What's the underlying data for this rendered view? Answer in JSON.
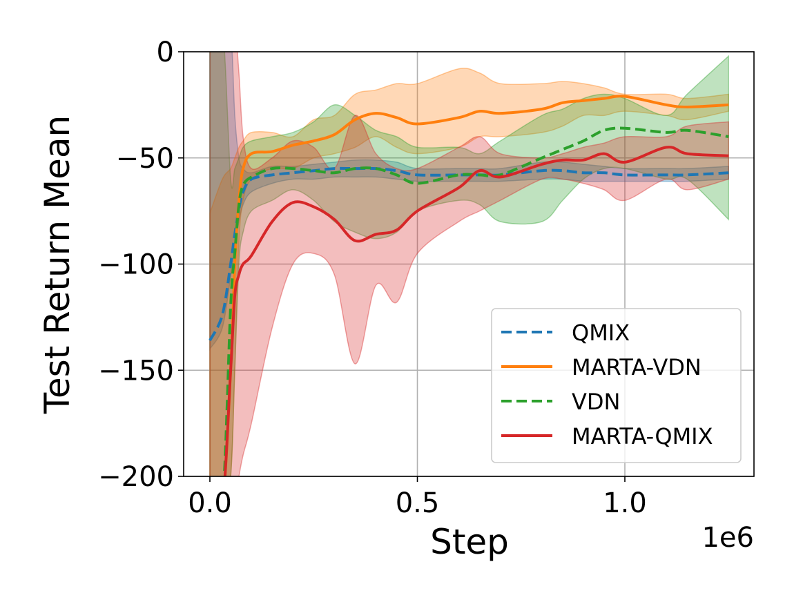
{
  "chart_data": {
    "type": "line",
    "title": "",
    "xlabel": "Step",
    "ylabel": "Test Return Mean",
    "x_offset_label": "1e6",
    "xlim": [
      -0.06,
      1.31
    ],
    "ylim": [
      -200,
      0
    ],
    "xticks": [
      0.0,
      0.5,
      1.0
    ],
    "xtick_labels": [
      "0.0",
      "0.5",
      "1.0"
    ],
    "yticks": [
      0,
      -50,
      -100,
      -150,
      -200
    ],
    "ytick_labels": [
      "0",
      "−50",
      "−100",
      "−150",
      "−200"
    ],
    "grid": true,
    "legend_position": "lower-right",
    "x": [
      0,
      0.03,
      0.05,
      0.06,
      0.07,
      0.08,
      0.1,
      0.15,
      0.2,
      0.25,
      0.3,
      0.35,
      0.4,
      0.45,
      0.5,
      0.6,
      0.65,
      0.7,
      0.8,
      0.85,
      0.9,
      0.95,
      1.0,
      1.1,
      1.15,
      1.25
    ],
    "series": [
      {
        "name": "QMIX",
        "color": "#1f77b4",
        "dashed": true,
        "mean": [
          -136,
          -124,
          -100,
          -86,
          -74,
          -66,
          -60,
          -58,
          -57,
          -56,
          -55,
          -55,
          -55,
          -56,
          -58,
          -58,
          -58,
          -58,
          -56,
          -56,
          -57,
          -57,
          -58,
          -58,
          -58,
          -57
        ],
        "lower": [
          -140,
          -130,
          -106,
          -92,
          -80,
          -72,
          -66,
          -62,
          -60,
          -60,
          -59,
          -59,
          -59,
          -60,
          -61,
          -61,
          -61,
          -61,
          -60,
          -60,
          -61,
          -61,
          -61,
          -61,
          -61,
          -60
        ],
        "upper": [
          20,
          20,
          10,
          -30,
          -50,
          -55,
          -57,
          -54,
          -54,
          -53,
          -52,
          -51,
          -51,
          -52,
          -55,
          -55,
          -55,
          -55,
          -52,
          -52,
          -53,
          -54,
          -55,
          -55,
          -55,
          -54
        ]
      },
      {
        "name": "MARTA-VDN",
        "color": "#ff7f0e",
        "dashed": false,
        "mean": [
          -300,
          -260,
          -150,
          -100,
          -70,
          -55,
          -48,
          -47,
          -44,
          -42,
          -39,
          -32,
          -29,
          -31,
          -34,
          -31,
          -28,
          -29,
          -27,
          -24,
          -23,
          -22,
          -21,
          -25,
          -26,
          -25
        ],
        "lower": [
          -300,
          -300,
          -200,
          -150,
          -90,
          -70,
          -60,
          -55,
          -55,
          -50,
          -48,
          -45,
          -40,
          -45,
          -48,
          -45,
          -40,
          -40,
          -38,
          -35,
          -30,
          -30,
          -28,
          -30,
          -32,
          -28
        ],
        "upper": [
          -76,
          -60,
          -55,
          -50,
          -45,
          -42,
          -38,
          -38,
          -40,
          -32,
          -30,
          -20,
          -18,
          -15,
          -15,
          -8,
          -10,
          -15,
          -15,
          -14,
          -15,
          -17,
          -20,
          -20,
          -22,
          -20
        ]
      },
      {
        "name": "VDN",
        "color": "#2ca02c",
        "dashed": true,
        "mean": [
          -300,
          -250,
          -120,
          -95,
          -72,
          -63,
          -59,
          -55,
          -55,
          -56,
          -57,
          -55,
          -55,
          -58,
          -62,
          -58,
          -58,
          -58,
          -50,
          -46,
          -42,
          -37,
          -36,
          -38,
          -37,
          -40
        ],
        "lower": [
          -300,
          -300,
          -200,
          -150,
          -100,
          -85,
          -75,
          -70,
          -65,
          -70,
          -80,
          -85,
          -88,
          -85,
          -75,
          -70,
          -72,
          -80,
          -80,
          -70,
          -60,
          -55,
          -55,
          -60,
          -60,
          -79
        ],
        "upper": [
          20,
          20,
          -60,
          -55,
          -50,
          -45,
          -42,
          -40,
          -38,
          -33,
          -25,
          -30,
          -37,
          -40,
          -45,
          -45,
          -48,
          -42,
          -30,
          -27,
          -22,
          -20,
          -22,
          -30,
          -20,
          -2
        ]
      },
      {
        "name": "MARTA-QMIX",
        "color": "#d62728",
        "dashed": false,
        "mean": [
          -400,
          -300,
          -150,
          -115,
          -105,
          -100,
          -96,
          -80,
          -71,
          -73,
          -79,
          -89,
          -86,
          -84,
          -75,
          -64,
          -56,
          -59,
          -53,
          -51,
          -51,
          -48,
          -52,
          -45,
          -48,
          -49
        ],
        "lower": [
          -400,
          -400,
          -250,
          -230,
          -200,
          -190,
          -175,
          -130,
          -100,
          -95,
          -105,
          -147,
          -110,
          -118,
          -95,
          -80,
          -75,
          -70,
          -60,
          -60,
          -62,
          -65,
          -70,
          -60,
          -65,
          -60
        ],
        "upper": [
          50,
          50,
          50,
          20,
          -10,
          -40,
          -55,
          -50,
          -42,
          -45,
          -55,
          -30,
          -48,
          -55,
          -55,
          -45,
          -40,
          -48,
          -50,
          -48,
          -45,
          -43,
          -40,
          -40,
          -35,
          -33
        ]
      }
    ]
  }
}
